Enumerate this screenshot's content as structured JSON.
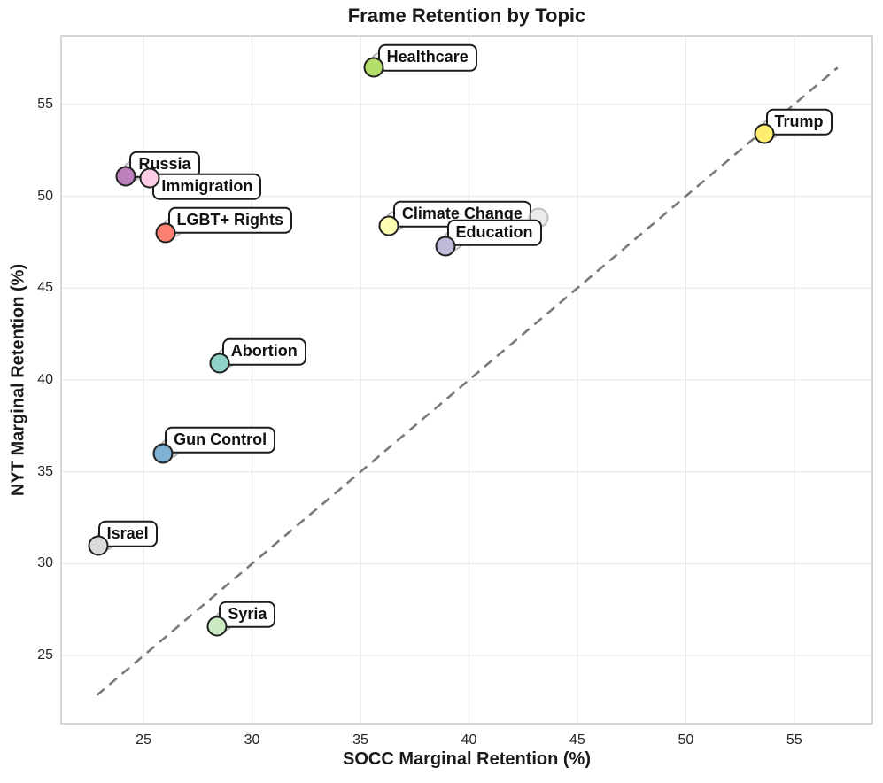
{
  "chart_data": {
    "type": "scatter",
    "title": "Frame Retention by Topic",
    "xlabel": "SOCC Marginal Retention (%)",
    "ylabel": "NYT Marginal Retention (%)",
    "xlim": [
      21.2,
      58.6
    ],
    "ylim": [
      21.3,
      58.7
    ],
    "xticks": [
      25,
      30,
      35,
      40,
      45,
      50,
      55
    ],
    "yticks": [
      25,
      30,
      35,
      40,
      45,
      50,
      55
    ],
    "grid": true,
    "grid_color": "#e9e9e9",
    "spine_color": "#c9c9c9",
    "identity_line": {
      "x1": 22.85,
      "y1": 22.85,
      "x2": 57.0,
      "y2": 57.0,
      "style": "dashed",
      "color": "#7a7a7a"
    },
    "points": [
      {
        "label": "Healthcare",
        "x": 35.6,
        "y": 57.0,
        "color": "#b3de69"
      },
      {
        "label": "Trump",
        "x": 53.6,
        "y": 53.4,
        "color": "#ffed6f"
      },
      {
        "label": "Russia",
        "x": 24.2,
        "y": 51.1,
        "color": "#bc80bd"
      },
      {
        "label": "Immigration",
        "x": 25.3,
        "y": 51.0,
        "color": "#fccde5"
      },
      {
        "label": "LGBT+ Rights",
        "x": 26.0,
        "y": 48.0,
        "color": "#fb8072"
      },
      {
        "label": "Climate Change",
        "x": 36.3,
        "y": 48.4,
        "color": "#ffffb3"
      },
      {
        "label": "Education",
        "x": 38.9,
        "y": 47.3,
        "color": "#bebada"
      },
      {
        "label": "Abortion",
        "x": 28.5,
        "y": 40.9,
        "color": "#8dd3c7"
      },
      {
        "label": "Gun Control",
        "x": 25.9,
        "y": 36.0,
        "color": "#80b1d3"
      },
      {
        "label": "Israel",
        "x": 22.9,
        "y": 31.0,
        "color": "#d9d9d9"
      },
      {
        "label": "Syria",
        "x": 28.4,
        "y": 26.6,
        "color": "#ccebc5"
      }
    ],
    "unlabeled_ghost": {
      "x": 43.2,
      "y": 48.8
    },
    "marker_edge_color": "#1f1f1f",
    "label_box_style": {
      "fill": "#ffffff",
      "edge": "#1c1c1c",
      "radius_px": 8
    }
  }
}
